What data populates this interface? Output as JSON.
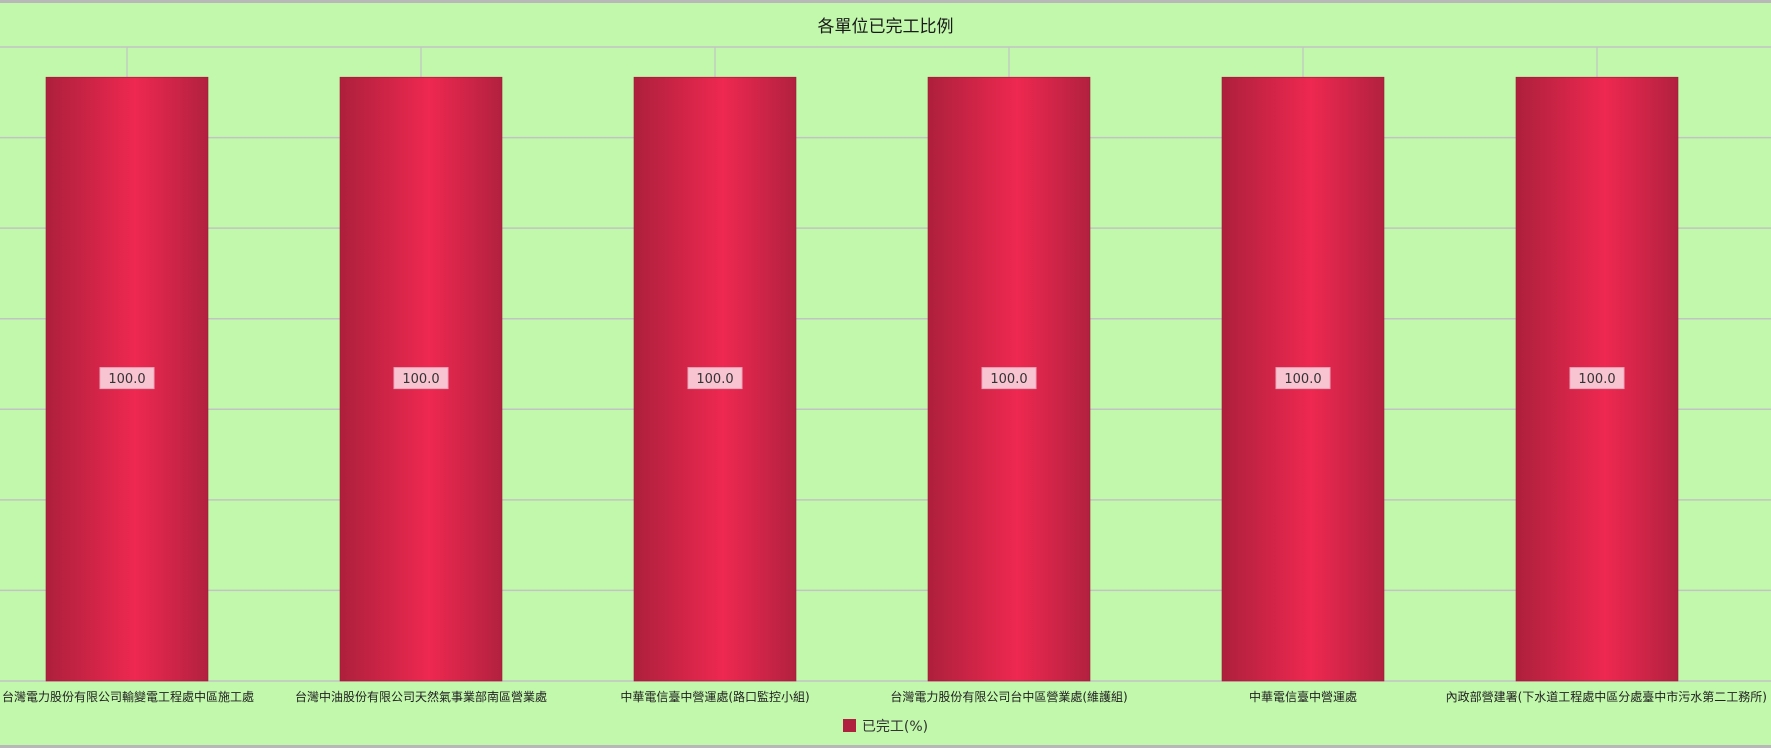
{
  "chart_data": {
    "type": "bar",
    "title": "各單位已完工比例",
    "categories": [
      "台灣電力股份有限公司輸變電工程處中區施工處",
      "台灣中油股份有限公司天然氣事業部南區營業處",
      "中華電信臺中營運處(路口監控小組)",
      "台灣電力股份有限公司台中區營業處(維護組)",
      "中華電信臺中營運處",
      "內政部營建署(下水道工程處中區分處臺中市污水第二工務所)"
    ],
    "series": [
      {
        "name": "已完工(%)",
        "values": [
          100.0,
          100.0,
          100.0,
          100.0,
          100.0,
          100.0
        ],
        "value_labels": [
          "100.0",
          "100.0",
          "100.0",
          "100.0",
          "100.0",
          "100.0"
        ],
        "color": "#b0213f"
      }
    ],
    "ylim": [
      0,
      105
    ],
    "grid": true,
    "legend": "bottom-center"
  },
  "colors": {
    "background": "#c2f8ac",
    "bar_dark": "#ad203c",
    "bar_light": "#ee2850",
    "grid": "#c3c3c3"
  }
}
